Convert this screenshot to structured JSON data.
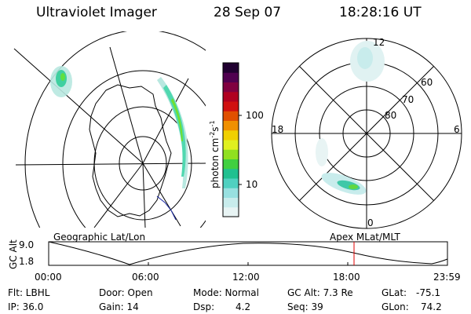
{
  "header": {
    "instrument": "Ultraviolet Imager",
    "date": "28 Sep 07",
    "time": "18:28:16 UT"
  },
  "left_map": {
    "label": "Geographic Lat/Lon"
  },
  "colorbar": {
    "unit_label": "photon cm",
    "unit_exp1": "-2",
    "unit_mid": "s",
    "unit_exp2": "-1",
    "tick_100": "100",
    "tick_10": "10",
    "colors": [
      "#e8f4f4",
      "#c8ecec",
      "#98e0e0",
      "#50d0c0",
      "#20c090",
      "#40d040",
      "#90e020",
      "#e0f020",
      "#f0d000",
      "#f09000",
      "#e05000",
      "#d01010",
      "#b00020",
      "#800040",
      "#500050",
      "#200030"
    ]
  },
  "right_map": {
    "label": "Apex MLat/MLT",
    "mlt_top": "12",
    "mlt_left": "18",
    "mlt_right": "6",
    "mlt_bottom": "0",
    "lat_60": "60",
    "lat_70": "70",
    "lat_80": "80"
  },
  "altitude_panel": {
    "axis_title": "GC Alt",
    "y_max": "9.0",
    "y_min": "1.8",
    "x_ticks": [
      "00:00",
      "06:00",
      "12:00",
      "18:00",
      "23:59"
    ],
    "current_time_marker": "18:28"
  },
  "status": {
    "filter": "Flt: LBHL",
    "ip": "IP: 36.0",
    "door": "Door: Open",
    "gain": "Gain: 14",
    "mode": "Mode: Normal",
    "dsp_label": "Dsp:",
    "dsp_value": "4.2",
    "gc_alt": "GC Alt: 7.3 Re",
    "seq": "Seq: 39",
    "glat_label": "GLat:",
    "glat_value": "-75.1",
    "glon_label": "GLon:",
    "glon_value": "74.2"
  }
}
